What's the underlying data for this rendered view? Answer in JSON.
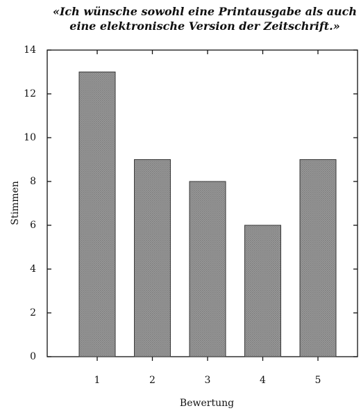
{
  "chart_data": {
    "type": "bar",
    "title": "«Ich wünsche sowohl eine Printausgabe als auch eine elektronische Version der Zeitschrift.»",
    "categories": [
      "1",
      "2",
      "3",
      "4",
      "5"
    ],
    "values": [
      13,
      9,
      8,
      6,
      9
    ],
    "color": "#9c9c9c",
    "xlabel": "Bewertung",
    "ylabel": "Stimmen",
    "ylim": [
      0,
      14
    ],
    "yticks": [
      0,
      2,
      4,
      6,
      8,
      10,
      12,
      14
    ],
    "grid": false
  }
}
